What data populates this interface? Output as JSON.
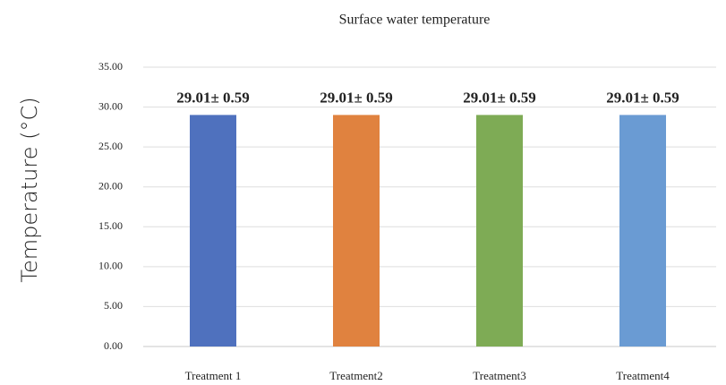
{
  "chart_data": {
    "type": "bar",
    "title": "Surface water temperature",
    "y_label": "Temperature (°C)",
    "categories": [
      "Treatment 1",
      "Treatment2",
      "Treatment3",
      "Treatment4"
    ],
    "values": [
      29.01,
      29.01,
      29.01,
      29.01
    ],
    "value_labels": [
      "29.01± 0.59",
      "29.01± 0.59",
      "29.01± 0.59",
      "29.01± 0.59"
    ],
    "colors": [
      "#4f71be",
      "#e0823f",
      "#7eab55",
      "#6a9bd3"
    ],
    "ylim": [
      0,
      35
    ],
    "yticks": [
      {
        "value": 0,
        "label": "0.00"
      },
      {
        "value": 5,
        "label": "5.00"
      },
      {
        "value": 10,
        "label": "10.00"
      },
      {
        "value": 15,
        "label": "15.00"
      },
      {
        "value": 20,
        "label": "20.00"
      },
      {
        "value": 25,
        "label": "25.00"
      },
      {
        "value": 30,
        "label": "30.00"
      },
      {
        "value": 35,
        "label": "35.00"
      }
    ],
    "grid": true
  }
}
